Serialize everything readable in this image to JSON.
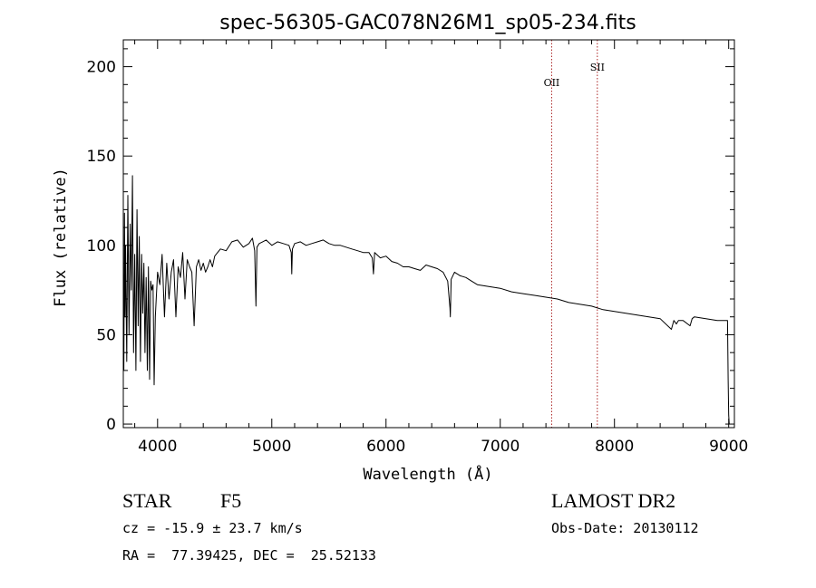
{
  "chart_data": {
    "type": "line",
    "title": "spec-56305-GAC078N26M1_sp05-234.fits",
    "xlabel": "Wavelength (Å)",
    "ylabel": "Flux (relative)",
    "xlim": [
      3700,
      9050
    ],
    "ylim": [
      -2,
      215
    ],
    "xticks": [
      "4000",
      "5000",
      "6000",
      "7000",
      "8000",
      "9000"
    ],
    "yticks": [
      "0",
      "50",
      "100",
      "150",
      "200"
    ],
    "grid": false,
    "legend": "none",
    "line_color": "#000000",
    "marker_color": "#aa2222",
    "spectral_lines": [
      {
        "name": "OII",
        "x": 7450
      },
      {
        "name": "SII",
        "x": 7850
      }
    ],
    "series": [
      {
        "x": [
          3700,
          3705,
          3710,
          3715,
          3720,
          3730,
          3740,
          3750,
          3760,
          3770,
          3780,
          3790,
          3800,
          3810,
          3820,
          3830,
          3840,
          3850,
          3860,
          3870,
          3880,
          3890,
          3900,
          3910,
          3920,
          3930,
          3940,
          3950,
          3960,
          3970,
          3980,
          3990,
          4000,
          4020,
          4040,
          4060,
          4080,
          4100,
          4120,
          4140,
          4160,
          4180,
          4200,
          4220,
          4240,
          4260,
          4280,
          4300,
          4320,
          4340,
          4360,
          4380,
          4400,
          4420,
          4440,
          4460,
          4480,
          4500,
          4550,
          4600,
          4650,
          4700,
          4750,
          4800,
          4830,
          4850,
          4861,
          4870,
          4890,
          4920,
          4950,
          5000,
          5050,
          5100,
          5150,
          5170,
          5175,
          5180,
          5200,
          5250,
          5300,
          5350,
          5400,
          5450,
          5500,
          5550,
          5600,
          5650,
          5700,
          5750,
          5800,
          5850,
          5880,
          5890,
          5900,
          5950,
          6000,
          6050,
          6100,
          6150,
          6200,
          6250,
          6300,
          6350,
          6400,
          6450,
          6500,
          6540,
          6560,
          6563,
          6570,
          6600,
          6650,
          6700,
          6750,
          6800,
          6900,
          7000,
          7100,
          7200,
          7300,
          7400,
          7500,
          7600,
          7700,
          7800,
          7900,
          8000,
          8100,
          8200,
          8300,
          8400,
          8498,
          8520,
          8542,
          8560,
          8600,
          8662,
          8680,
          8700,
          8800,
          8900,
          8990,
          8995,
          9000,
          9005
        ],
        "y": [
          85,
          30,
          118,
          60,
          100,
          35,
          128,
          50,
          112,
          75,
          139,
          40,
          95,
          30,
          120,
          55,
          105,
          35,
          95,
          62,
          90,
          40,
          82,
          30,
          88,
          25,
          80,
          75,
          78,
          22,
          60,
          72,
          85,
          78,
          95,
          60,
          90,
          70,
          85,
          92,
          60,
          88,
          82,
          96,
          70,
          92,
          88,
          85,
          55,
          88,
          92,
          86,
          90,
          85,
          88,
          92,
          88,
          94,
          98,
          97,
          102,
          103,
          99,
          101,
          104,
          97,
          66,
          99,
          101,
          102,
          103,
          100,
          102,
          101,
          100,
          96,
          84,
          98,
          101,
          102,
          100,
          101,
          102,
          103,
          101,
          100,
          100,
          99,
          98,
          97,
          96,
          96,
          93,
          84,
          96,
          93,
          94,
          91,
          90,
          88,
          88,
          87,
          86,
          89,
          88,
          87,
          85,
          80,
          65,
          60,
          81,
          85,
          83,
          82,
          80,
          78,
          77,
          76,
          74,
          73,
          72,
          71,
          70,
          68,
          67,
          66,
          64,
          63,
          62,
          61,
          60,
          59,
          53,
          58,
          56,
          58,
          58,
          55,
          59,
          60,
          59,
          58,
          58,
          25,
          5,
          0
        ]
      }
    ]
  },
  "info": {
    "class_label": "STAR",
    "subclass_label": "F5",
    "survey_label": "LAMOST DR2",
    "cz_text": "cz = -15.9 ± 23.7 km/s",
    "obs_date_text": "Obs-Date: 20130112",
    "coords_text": "RA =  77.39425, DEC =  25.52133"
  }
}
